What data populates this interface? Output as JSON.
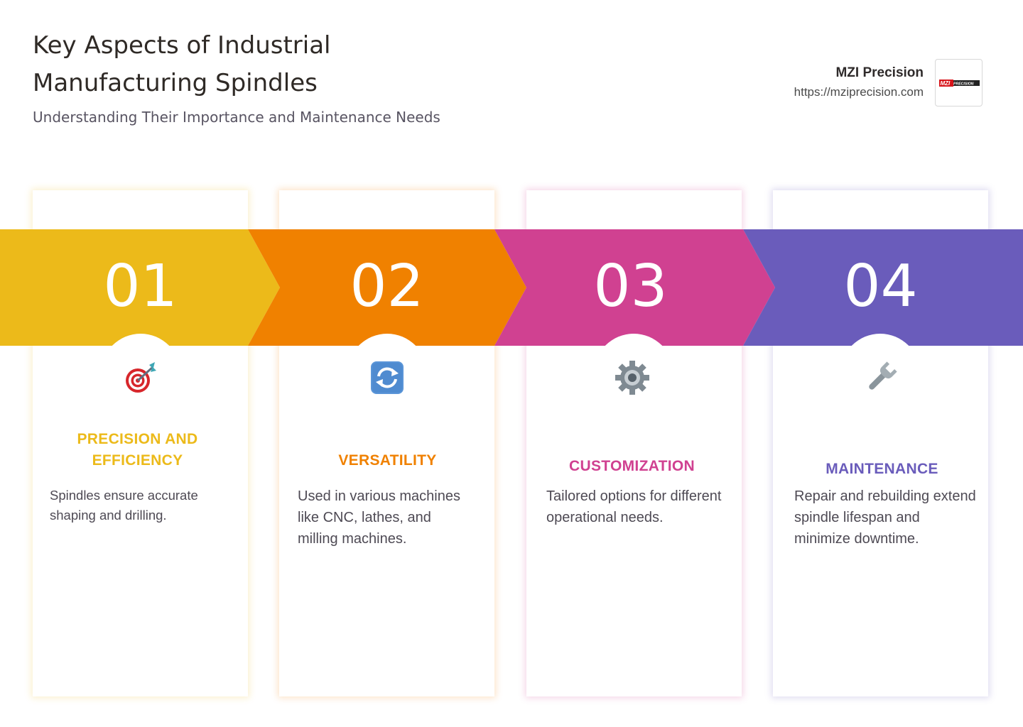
{
  "header": {
    "title": "Key Aspects of Industrial Manufacturing Spindles",
    "subtitle": "Understanding Their Importance and Maintenance Needs"
  },
  "brand": {
    "name": "MZI Precision",
    "url": "https://mziprecision.com",
    "logo_text": "MZI PRECISION"
  },
  "steps": [
    {
      "number": "01",
      "icon": "target-icon",
      "color": "#ecba1a",
      "heading": "PRECISION AND EFFICIENCY",
      "description": "Spindles ensure accurate shaping and drilling."
    },
    {
      "number": "02",
      "icon": "refresh-arrows-icon",
      "color": "#f08100",
      "heading": "VERSATILITY",
      "description": "Used in various machines like CNC, lathes, and milling machines."
    },
    {
      "number": "03",
      "icon": "gear-icon",
      "color": "#d04191",
      "heading": "CUSTOMIZATION",
      "description": "Tailored options for different operational needs."
    },
    {
      "number": "04",
      "icon": "wrench-icon",
      "color": "#6a5cbb",
      "heading": "MAINTENANCE",
      "description": "Repair and rebuilding extend spindle lifespan and minimize downtime."
    }
  ]
}
